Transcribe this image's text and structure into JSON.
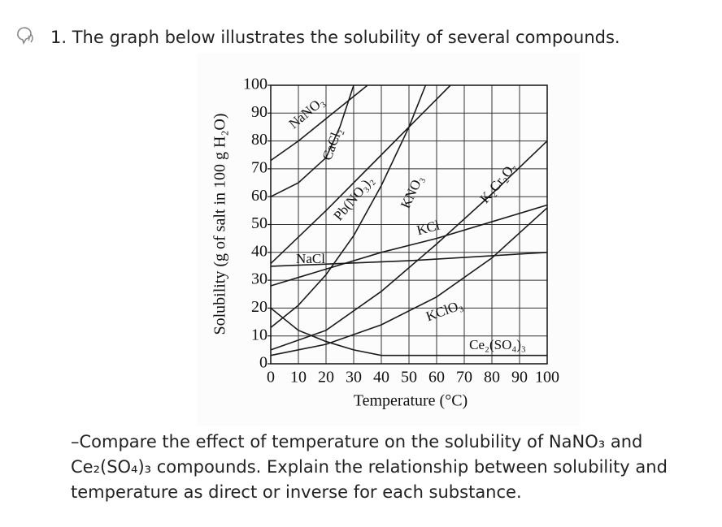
{
  "question": {
    "prompt": "1. The graph below illustrates the solubility of several compounds.",
    "task": "–Compare the effect of temperature on the solubility of NaNO₃ and Ce₂(SO₄)₃ compounds.  Explain the relationship between solubility and temperature as direct or inverse for each substance."
  },
  "chart_data": {
    "type": "line",
    "xlabel": "Temperature (°C)",
    "ylabel": "Solubility (g of salt in 100 g H₂O)",
    "xlim": [
      0,
      100
    ],
    "xticks": [
      0,
      10,
      20,
      30,
      40,
      50,
      60,
      70,
      80,
      90,
      100
    ],
    "ylim": [
      0,
      100
    ],
    "yticks": [
      0,
      10,
      20,
      30,
      40,
      50,
      60,
      70,
      80,
      90,
      100
    ],
    "grid": true,
    "series": [
      {
        "name": "NaNO₃",
        "color": "#1a1a1a",
        "x": [
          0,
          10,
          20,
          30,
          35
        ],
        "values": [
          73,
          80,
          88,
          96,
          100
        ]
      },
      {
        "name": "CaCl₂",
        "color": "#1a1a1a",
        "x": [
          0,
          10,
          20,
          25,
          30
        ],
        "values": [
          60,
          65,
          74,
          85,
          100
        ]
      },
      {
        "name": "Pb(NO₃)₂",
        "color": "#1a1a1a",
        "x": [
          0,
          20,
          40,
          60,
          65
        ],
        "values": [
          36,
          55,
          75,
          95,
          100
        ]
      },
      {
        "name": "KNO₃",
        "color": "#1a1a1a",
        "x": [
          0,
          10,
          20,
          30,
          40,
          50,
          56
        ],
        "values": [
          13,
          21,
          32,
          46,
          64,
          85,
          100
        ]
      },
      {
        "name": "KCl",
        "color": "#1a1a1a",
        "x": [
          0,
          20,
          40,
          60,
          80,
          100
        ],
        "values": [
          28,
          34,
          40,
          45,
          51,
          57
        ]
      },
      {
        "name": "NaCl",
        "color": "#1a1a1a",
        "x": [
          0,
          50,
          100
        ],
        "values": [
          35,
          37,
          40
        ]
      },
      {
        "name": "K₂Cr₂O₇",
        "color": "#1a1a1a",
        "x": [
          0,
          20,
          40,
          60,
          80,
          100
        ],
        "values": [
          5,
          12,
          26,
          43,
          61,
          80
        ]
      },
      {
        "name": "KClO₃",
        "color": "#1a1a1a",
        "x": [
          0,
          20,
          40,
          60,
          80,
          100
        ],
        "values": [
          3,
          7,
          14,
          24,
          38,
          56
        ]
      },
      {
        "name": "Ce₂(SO₄)₃",
        "color": "#1a1a1a",
        "x": [
          0,
          10,
          20,
          30,
          40,
          60,
          100
        ],
        "values": [
          20,
          12,
          8,
          5,
          3,
          3,
          3
        ]
      }
    ]
  }
}
